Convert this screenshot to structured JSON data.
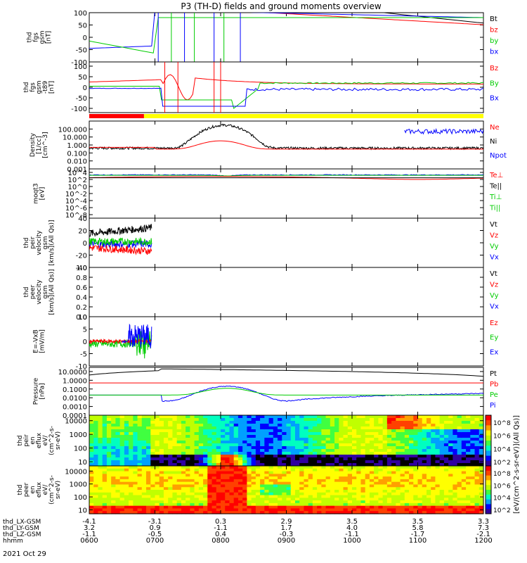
{
  "title": "P3 (TH-D) fields and ground moments overview",
  "colors": {
    "black": "#000000",
    "red": "#ff0000",
    "green": "#00cc00",
    "blue": "#0000ff",
    "yellow": "#ffff00"
  },
  "chart_data": [
    {
      "type": "line",
      "ylabel_lines": [
        "thd",
        "fgs",
        "gsm",
        "[nT]"
      ],
      "ylim": [
        -100,
        100
      ],
      "yticks": [
        "100",
        "50",
        "0",
        "-50",
        "-100"
      ],
      "log": false,
      "series": [
        {
          "name": "Bt",
          "color": "#000000"
        },
        {
          "name": "bz",
          "color": "#ff0000"
        },
        {
          "name": "by",
          "color": "#00cc00"
        },
        {
          "name": "bx",
          "color": "#0000ff"
        }
      ]
    },
    {
      "type": "line",
      "ylabel_lines": [
        "thd",
        "fgs",
        "gsm",
        "-t89",
        "[nT]"
      ],
      "ylim": [
        -120,
        120
      ],
      "yticks": [
        "100",
        "50",
        "0",
        "-50",
        "-100"
      ],
      "log": false,
      "series": [
        {
          "name": "Bz",
          "color": "#ff0000"
        },
        {
          "name": "By",
          "color": "#00cc00"
        },
        {
          "name": "Bx",
          "color": "#0000ff"
        }
      ]
    },
    {
      "type": "line",
      "ylabel_lines": [
        "Density",
        "[1/cc]",
        "[cm^-3]"
      ],
      "ylim": [
        0.001,
        1000
      ],
      "log": true,
      "yticks": [
        "100.000",
        "10.000",
        "1.000",
        "0.100",
        "0.010",
        "0.001"
      ],
      "series": [
        {
          "name": "Ne",
          "color": "#ff0000"
        },
        {
          "name": "Ni",
          "color": "#000000"
        },
        {
          "name": "Npot",
          "color": "#0000ff"
        }
      ]
    },
    {
      "type": "line",
      "ylabel_lines": [
        "moqt3",
        "[eV]"
      ],
      "ylim": [
        1e-09,
        100000.0
      ],
      "log": true,
      "yticks": [
        "10^4",
        "10^2",
        "10^0",
        "10^-2",
        "10^-4",
        "10^-6",
        "10^-8"
      ],
      "series": [
        {
          "name": "Te⊥",
          "color": "#ff0000"
        },
        {
          "name": "Te||",
          "color": "#000000"
        },
        {
          "name": "Ti⊥",
          "color": "#00cc00"
        },
        {
          "name": "Ti||",
          "color": "#00cc00"
        }
      ]
    },
    {
      "type": "line",
      "ylabel_lines": [
        "thd",
        "peir",
        "velocity",
        "gsm",
        "[km/s](All Qs)]"
      ],
      "ylim": [
        -40,
        40
      ],
      "log": false,
      "yticks": [
        "40",
        "20",
        "0",
        "-20",
        "-40"
      ],
      "series": [
        {
          "name": "Vt",
          "color": "#000000"
        },
        {
          "name": "Vz",
          "color": "#ff0000"
        },
        {
          "name": "Vy",
          "color": "#00cc00"
        },
        {
          "name": "Vx",
          "color": "#0000ff"
        }
      ]
    },
    {
      "type": "line",
      "ylabel_lines": [
        "thd",
        "peer",
        "velocity",
        "gsm",
        "[km/s](All Qs)]"
      ],
      "ylim": [
        0,
        1
      ],
      "log": false,
      "yticks": [
        "1.0",
        "0.8",
        "0.6",
        "0.4",
        "0.2",
        "0.0"
      ],
      "series": [
        {
          "name": "Vt",
          "color": "#000000"
        },
        {
          "name": "Vz",
          "color": "#ff0000"
        },
        {
          "name": "Vy",
          "color": "#00cc00"
        },
        {
          "name": "Vx",
          "color": "#0000ff"
        }
      ]
    },
    {
      "type": "line",
      "ylabel_lines": [
        "E=-VxB",
        "[mV/m]"
      ],
      "ylim": [
        -10,
        10
      ],
      "log": false,
      "yticks": [
        "10",
        "5",
        "0",
        "-5",
        "-10"
      ],
      "series": [
        {
          "name": "Ez",
          "color": "#ff0000"
        },
        {
          "name": "Ey",
          "color": "#00cc00"
        },
        {
          "name": "Ex",
          "color": "#0000ff"
        }
      ]
    },
    {
      "type": "line",
      "ylabel_lines": [
        "Pressure",
        "[nPa]"
      ],
      "ylim": [
        0.0001,
        30
      ],
      "log": true,
      "yticks": [
        "10.0000",
        "1.0000",
        "0.1000",
        "0.0100",
        "0.0010",
        "0.0001"
      ],
      "series": [
        {
          "name": "Pt",
          "color": "#000000"
        },
        {
          "name": "Pb",
          "color": "#ff0000"
        },
        {
          "name": "Pe",
          "color": "#00cc00"
        },
        {
          "name": "Pi",
          "color": "#0000ff"
        }
      ]
    },
    {
      "type": "heatmap",
      "ylabel_lines": [
        "thd",
        "peir",
        "en",
        "eflux",
        "eV/",
        "(cm^2-s-",
        "sr-eV)"
      ],
      "ylim": [
        5,
        25000
      ],
      "log": true,
      "yticks": [
        "10000",
        "1000",
        "100",
        "10"
      ],
      "colorbar": {
        "label": "[eV/(cm^2-s-sr-eV)](All Qs)]",
        "ticks": [
          "10^8",
          "10^6",
          "10^4",
          "10^2"
        ]
      }
    },
    {
      "type": "heatmap",
      "ylabel_lines": [
        "thd",
        "peer",
        "en",
        "eflux",
        "eV/",
        "(cm^2-s-",
        "sr-eV)"
      ],
      "ylim": [
        5,
        25000
      ],
      "log": true,
      "yticks": [
        "10000",
        "1000",
        "100",
        "10"
      ],
      "colorbar": {
        "label": "[eV/(cm^2-s-sr-eV)](All Qs)]",
        "ticks": [
          "10^8",
          "10^6",
          "10^4",
          "10^2"
        ]
      }
    }
  ],
  "x_axis": {
    "row_labels": [
      "thd_LX-GSM",
      "thd_LY-GSM",
      "thd_LZ-GSM",
      "hhmm"
    ],
    "columns": [
      [
        "-4.1",
        "3.2",
        "-1.1",
        "0600"
      ],
      [
        "-3.1",
        "0.9",
        "-0.5",
        "0700"
      ],
      [
        "0.3",
        "-1.1",
        "0.4",
        "0800"
      ],
      [
        "2.9",
        "1.7",
        "-0.3",
        "0900"
      ],
      [
        "3.5",
        "4.0",
        "-1.1",
        "1000"
      ],
      [
        "3.5",
        "5.8",
        "-1.7",
        "1100"
      ],
      [
        "3.3",
        "7.3",
        "-2.1",
        "1200"
      ]
    ],
    "date": "2021 Oct 29"
  },
  "mode_bar": {
    "colors": [
      "#ff0000",
      "#ffff00"
    ],
    "split_time": "0650"
  }
}
